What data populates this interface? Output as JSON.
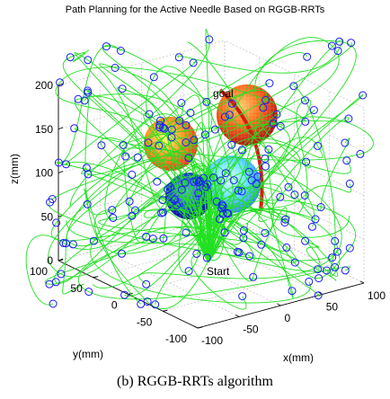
{
  "chart_data": {
    "type": "scatter3d",
    "title": "Path Planning for the Active Needle Based on RGGB-RRTs",
    "xlabel": "x(mm)",
    "ylabel": "y(mm)",
    "zlabel": "z(mm)",
    "xlim": [
      -100,
      100
    ],
    "ylim": [
      -100,
      100
    ],
    "zlim": [
      0,
      200
    ],
    "xticks": [
      -100,
      -50,
      0,
      50,
      100
    ],
    "yticks": [
      -100,
      -50,
      0,
      50,
      100
    ],
    "zticks": [
      0,
      50,
      100,
      150,
      200
    ],
    "grid": true,
    "annotations": [
      "goal",
      "Start"
    ]
  },
  "caption": "(b) RGGB-RRTs algorithm"
}
